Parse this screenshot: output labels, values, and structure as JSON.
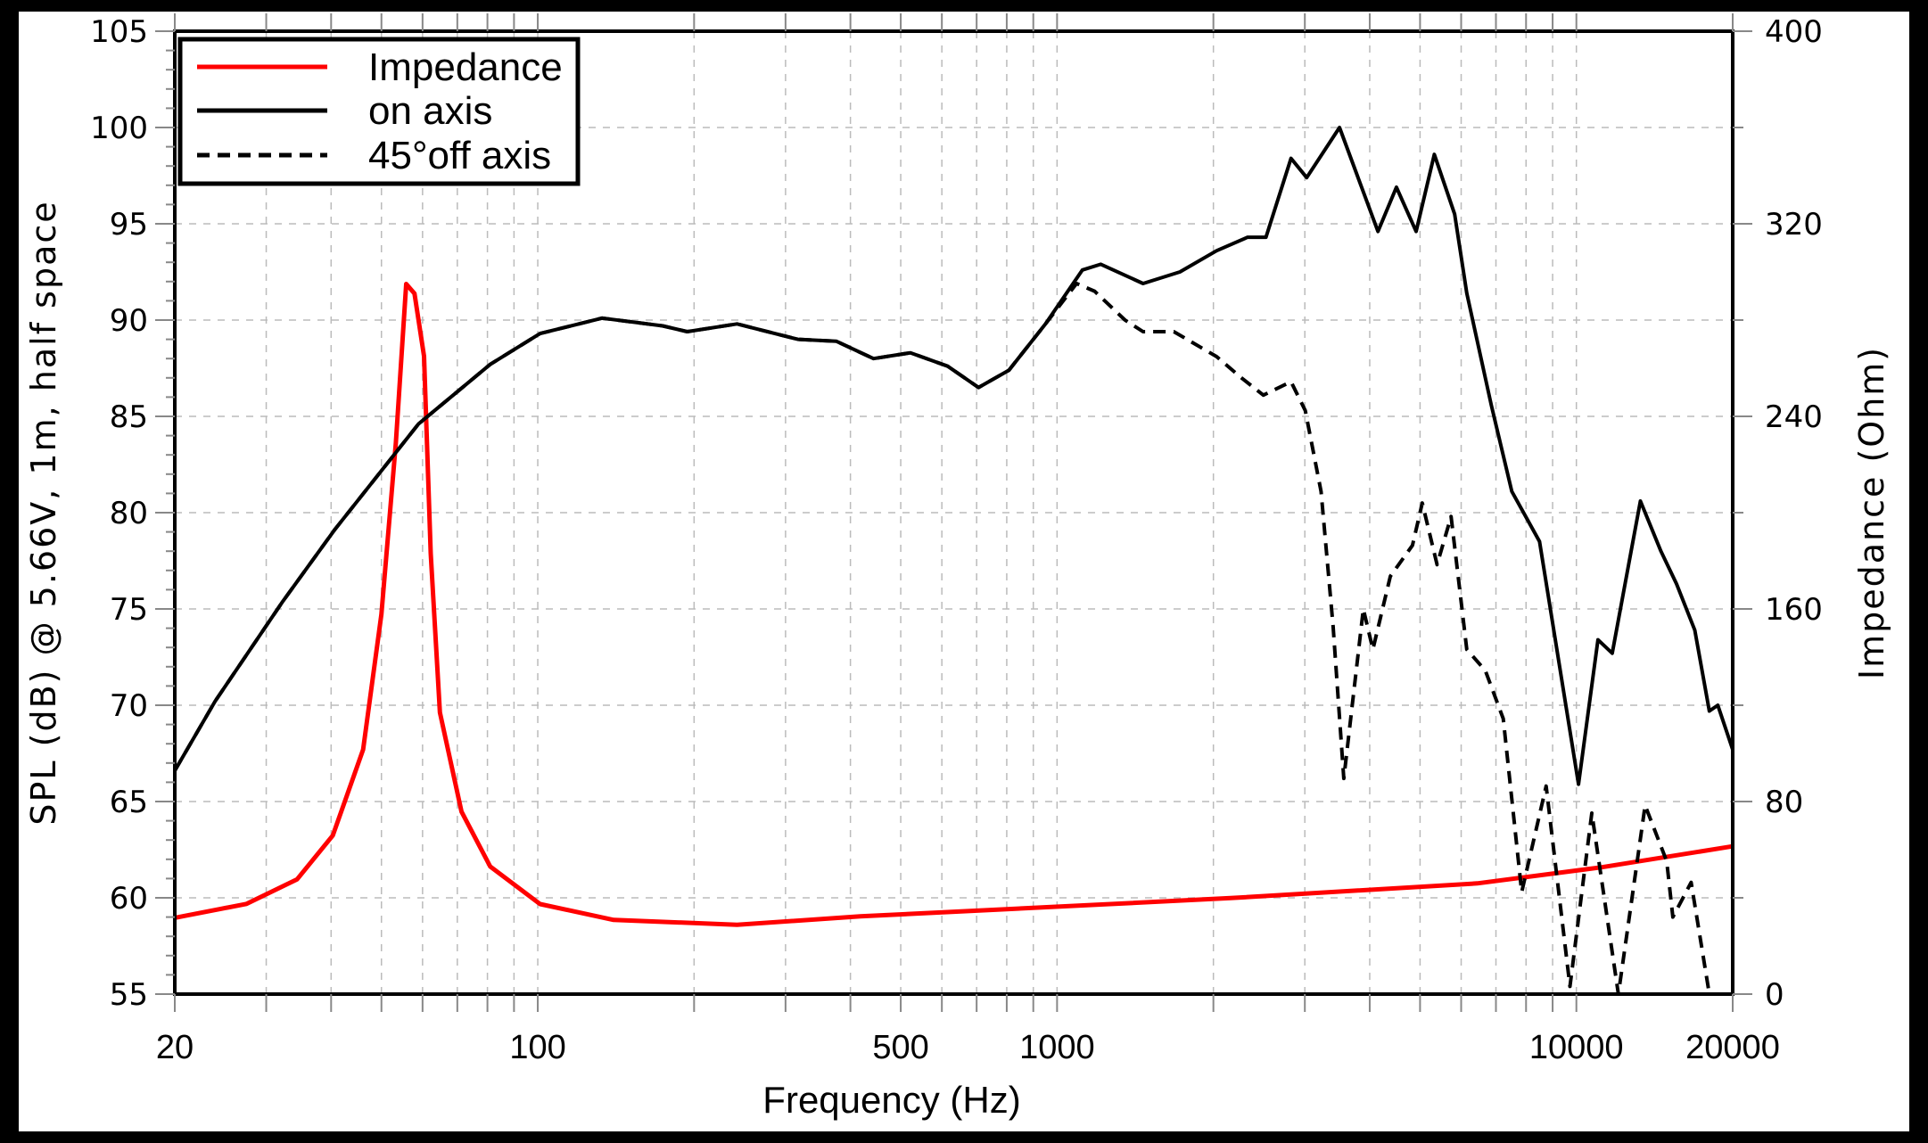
{
  "chart_data": {
    "type": "line",
    "title": "",
    "xlabel": "Frequency (Hz)",
    "ylabel": "SPL (dB) @ 5.66V, 1m, half space",
    "y2label": "Impedance (Ohm)",
    "xscale": "log",
    "xlim": [
      20,
      20000
    ],
    "ylim": [
      55,
      105
    ],
    "y2lim": [
      0,
      400
    ],
    "grid": true,
    "legend_position": "upper left",
    "x_ticks": [
      20,
      100,
      500,
      1000,
      10000,
      20000
    ],
    "x_tick_labels": [
      "20",
      "100",
      "500",
      "1000",
      "10000",
      "20000"
    ],
    "y_ticks": [
      55,
      60,
      65,
      70,
      75,
      80,
      85,
      90,
      95,
      100,
      105
    ],
    "y_tick_labels": [
      "55",
      "60",
      "65",
      "70",
      "75",
      "80",
      "85",
      "90",
      "95",
      "100",
      "105"
    ],
    "y2_ticks": [
      0,
      80,
      160,
      240,
      320,
      400
    ],
    "y2_tick_labels": [
      "0",
      "80",
      "160",
      "240",
      "320",
      "400"
    ],
    "series": [
      {
        "name": "Impedance",
        "axis": "right",
        "color": "#ff0000",
        "style": "solid",
        "x": [
          20,
          27.5,
          34.4,
          40.3,
          46.1,
          50.0,
          53.3,
          55.8,
          57.9,
          60.4,
          62.2,
          64.8,
          71.3,
          81.0,
          101,
          140,
          242,
          418,
          723,
          2159,
          6446,
          11197,
          20000
        ],
        "y": [
          31.7,
          37.5,
          47.7,
          65.9,
          101.6,
          157.8,
          229,
          295,
          291,
          265,
          183,
          117,
          75.8,
          53,
          37.4,
          30.8,
          28.8,
          32.3,
          34.8,
          39.9,
          46.0,
          52.7,
          61.4
        ]
      },
      {
        "name": "on axis",
        "axis": "left",
        "color": "#000000",
        "style": "solid",
        "x": [
          20,
          23.9,
          32.3,
          40.6,
          58.9,
          81.0,
          101,
          133,
          174,
          194,
          242,
          317,
          376,
          443,
          522,
          616,
          706,
          808,
          950,
          1119,
          1214,
          1464,
          1724,
          2029,
          2327,
          2525,
          2822,
          3025,
          3499,
          4149,
          4503,
          4914,
          5327,
          5829,
          6152,
          6854,
          7510,
          8495,
          10094,
          11003,
          11725,
          13282,
          14549,
          15591,
          16905,
          18031,
          18725,
          20000
        ],
        "y": [
          66.6,
          70.2,
          75.4,
          79.1,
          84.6,
          87.7,
          89.3,
          90.1,
          89.7,
          89.4,
          89.8,
          89.0,
          88.9,
          88.0,
          88.3,
          87.6,
          86.5,
          87.4,
          89.8,
          92.6,
          92.9,
          91.9,
          92.5,
          93.6,
          94.3,
          94.3,
          98.4,
          97.4,
          100.0,
          94.6,
          96.9,
          94.6,
          98.6,
          95.5,
          91.4,
          85.6,
          81.1,
          78.5,
          65.9,
          73.4,
          72.7,
          80.6,
          78.0,
          76.3,
          73.9,
          69.7,
          70.0,
          67.7
        ]
      },
      {
        "name": "45°off axis",
        "axis": "left",
        "color": "#000000",
        "style": "dashed",
        "x": [
          20,
          23.9,
          32.3,
          40.6,
          58.9,
          81.0,
          101,
          133,
          174,
          194,
          242,
          317,
          376,
          443,
          522,
          616,
          706,
          808,
          950,
          1090,
          1181,
          1352,
          1464,
          1678,
          2029,
          2265,
          2496,
          2822,
          3006,
          3224,
          3400,
          3566,
          3888,
          4057,
          4384,
          4835,
          5049,
          5392,
          5738,
          6152,
          6678,
          7230,
          7848,
          8746,
          9718,
          10706,
          12045,
          13566,
          14925,
          15340,
          16633,
          18031
        ],
        "y": [
          66.6,
          70.2,
          75.4,
          79.1,
          84.6,
          87.7,
          89.3,
          90.1,
          89.7,
          89.4,
          89.8,
          89.0,
          88.9,
          88.0,
          88.3,
          87.6,
          86.5,
          87.4,
          89.8,
          91.9,
          91.5,
          90.0,
          89.4,
          89.4,
          88.1,
          87.0,
          86.1,
          86.8,
          85.3,
          81.1,
          74.1,
          66.2,
          75.0,
          72.9,
          76.7,
          78.3,
          80.5,
          77.3,
          79.8,
          72.9,
          71.8,
          69.3,
          60.3,
          65.8,
          55.4,
          64.4,
          55.0,
          64.8,
          61.9,
          59.0,
          60.8,
          55.0
        ]
      }
    ]
  },
  "legend": {
    "items": [
      {
        "label": "Impedance",
        "color": "#ff0000",
        "style": "solid"
      },
      {
        "label": "on axis",
        "color": "#000000",
        "style": "solid"
      },
      {
        "label": "45°off axis",
        "color": "#000000",
        "style": "dashed"
      }
    ]
  }
}
